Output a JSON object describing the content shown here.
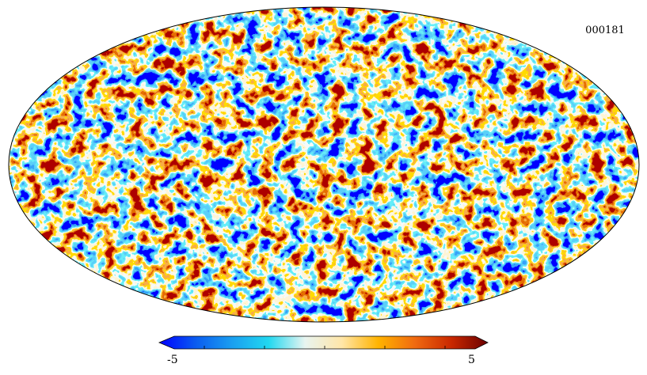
{
  "map": {
    "id_label": "000181",
    "projection": "mollweide",
    "outline_color": "#000000"
  },
  "colorbar": {
    "min_label": "-5",
    "max_label": "5",
    "min": -5,
    "max": 5,
    "ticks": [
      -4,
      -2,
      0,
      2,
      4
    ],
    "colors": [
      "#0000ff",
      "#0a5cf0",
      "#1a9ff0",
      "#22d8f0",
      "#e8f4f0",
      "#ffe6a8",
      "#ffb300",
      "#f06a10",
      "#c92800",
      "#6a0000"
    ]
  }
}
